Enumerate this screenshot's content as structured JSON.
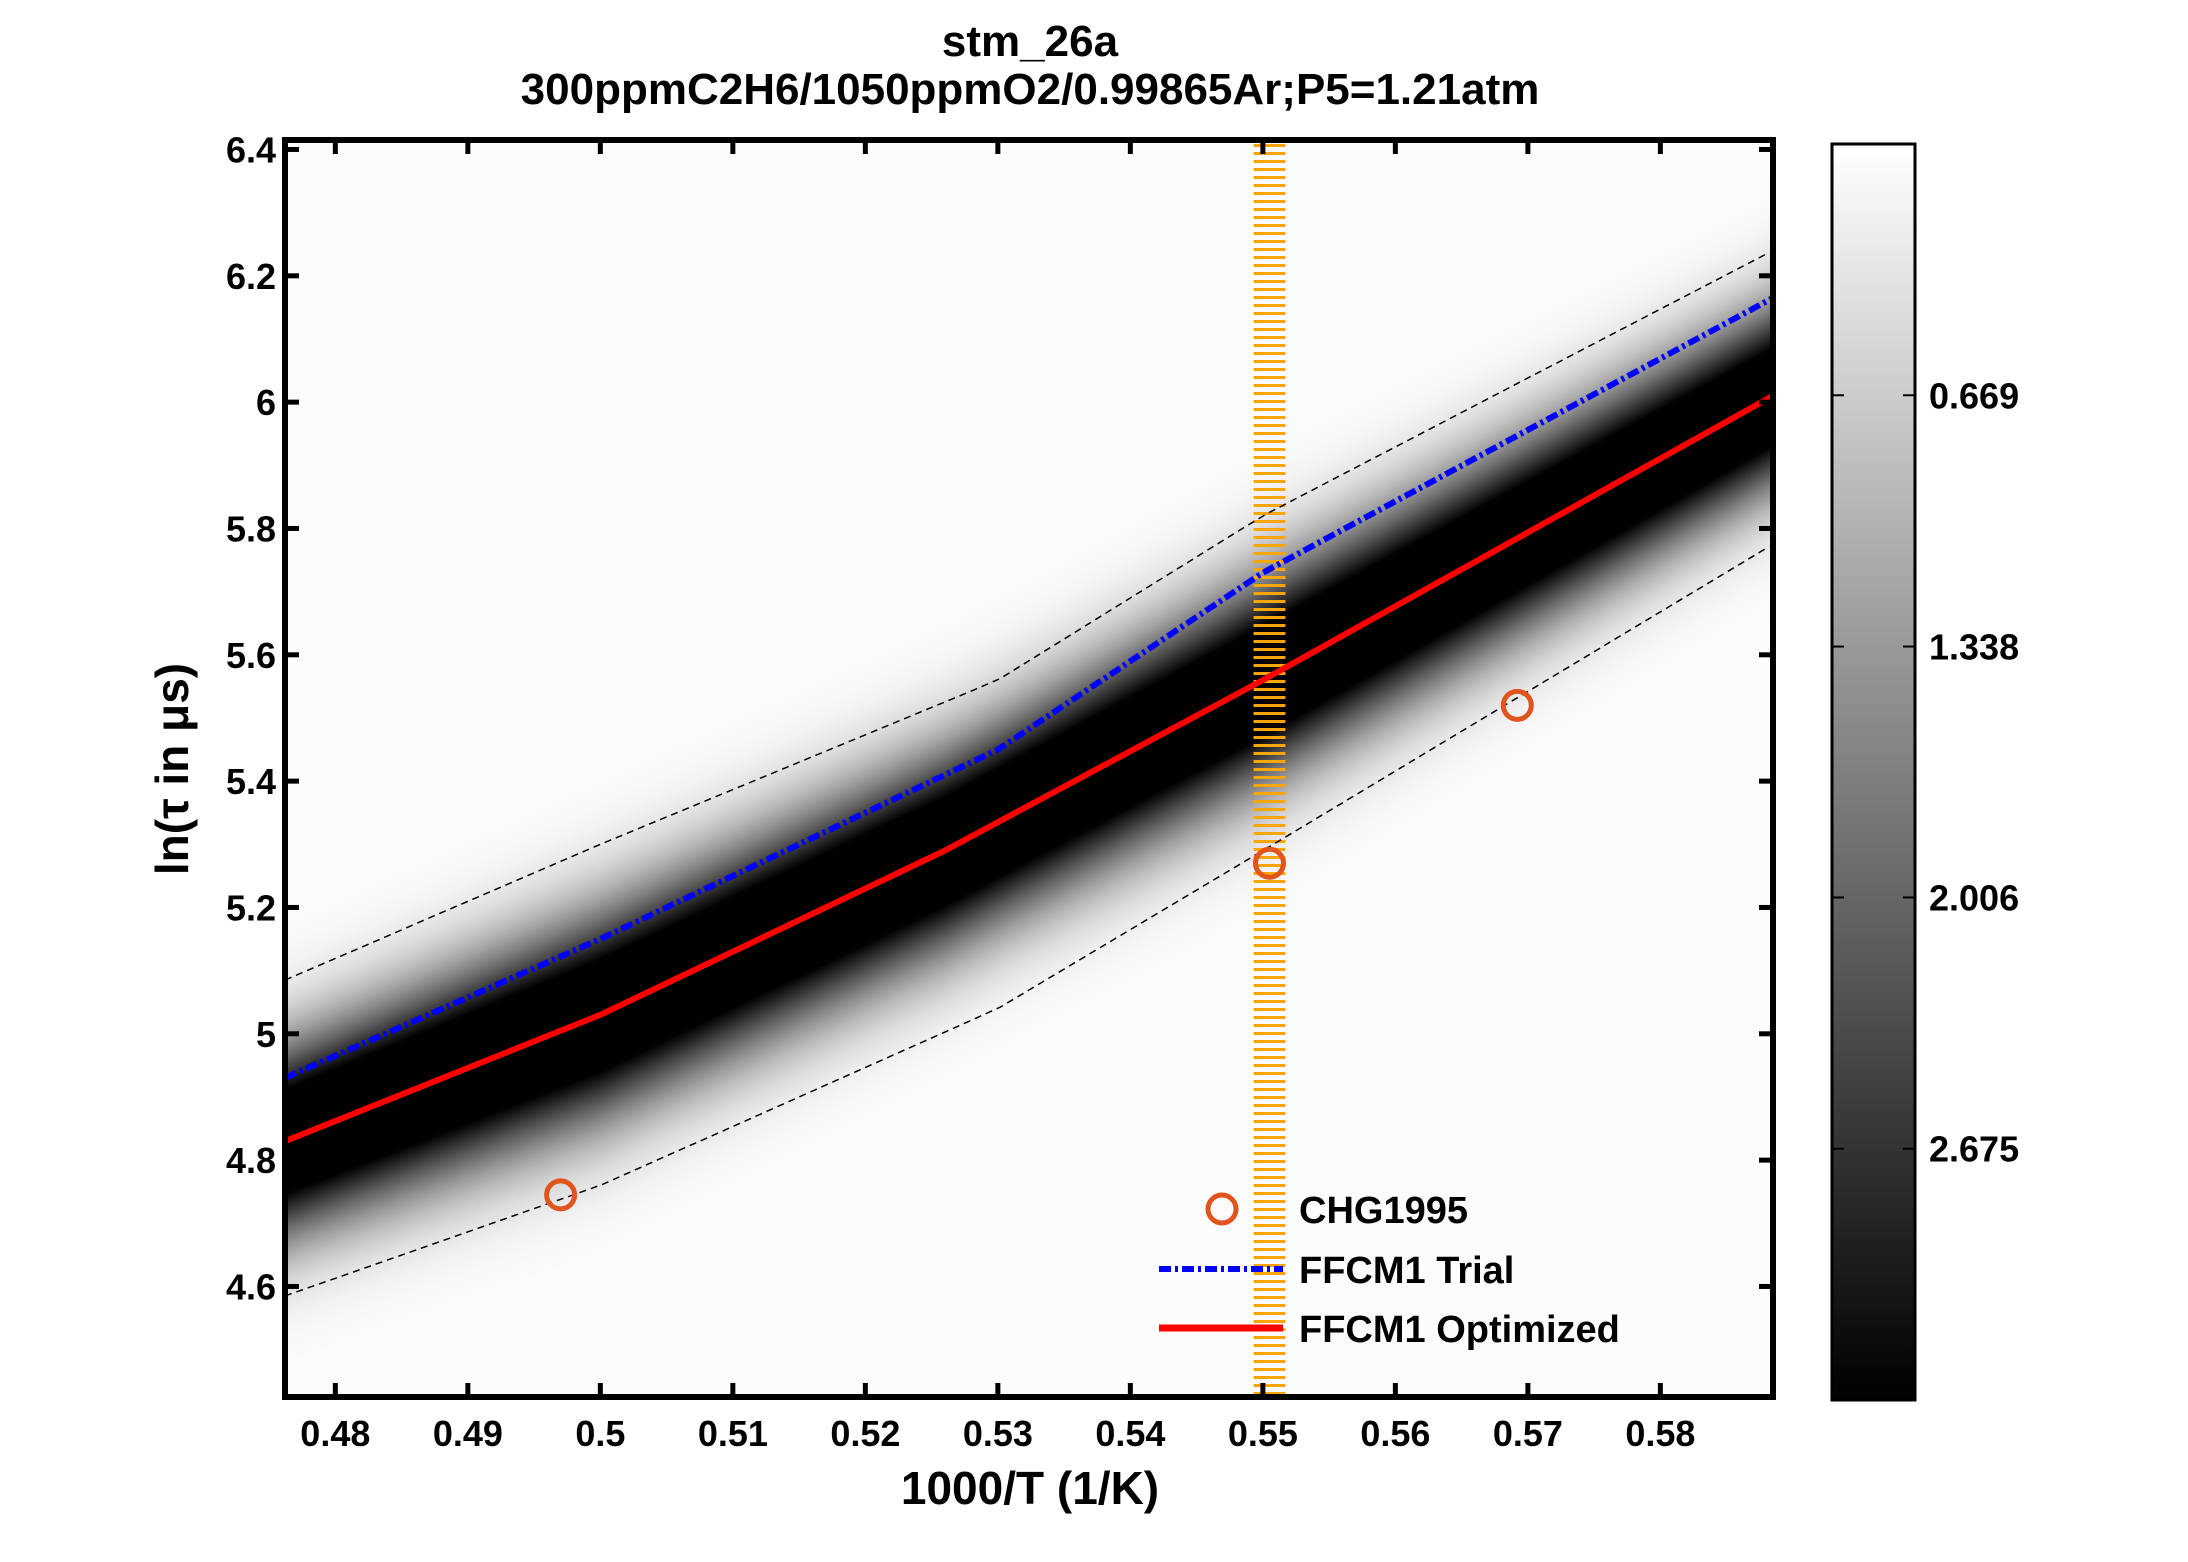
{
  "chart_data": {
    "type": "line",
    "title": "stm_26a",
    "subtitle": "300ppmC2H6/1050ppmO2/0.99865Ar;P5=1.21atm",
    "xlabel": "1000/T (1/K)",
    "ylabel": "ln(τ in μs)",
    "xlim": [
      0.4762,
      0.5885
    ],
    "ylim": [
      4.425,
      6.415
    ],
    "xticks": [
      0.48,
      0.49,
      0.5,
      0.51,
      0.52,
      0.53,
      0.54,
      0.55,
      0.56,
      0.57,
      0.58
    ],
    "xtick_labels": [
      "0.48",
      "0.49",
      "0.5",
      "0.51",
      "0.52",
      "0.53",
      "0.54",
      "0.55",
      "0.56",
      "0.57",
      "0.58"
    ],
    "yticks": [
      4.6,
      4.8,
      5.0,
      5.2,
      5.4,
      5.6,
      5.8,
      6.0,
      6.2,
      6.4
    ],
    "ytick_labels": [
      "4.6",
      "4.8",
      "5",
      "5.2",
      "5.4",
      "5.6",
      "5.8",
      "6",
      "6.2",
      "6.4"
    ],
    "grid": false,
    "legend_position": "bottom-right",
    "series": [
      {
        "name": "CHG1995",
        "style": "markers",
        "marker": "circle",
        "color": "#e0541e",
        "x": [
          0.497,
          0.5505,
          0.5692
        ],
        "y": [
          4.745,
          5.27,
          5.52
        ]
      },
      {
        "name": "FFCM1 Trial",
        "style": "dash-dot",
        "color": "#0000ff",
        "x": [
          0.4762,
          0.5,
          0.53,
          0.55,
          0.5885
        ],
        "y": [
          4.93,
          5.15,
          5.45,
          5.73,
          6.165
        ]
      },
      {
        "name": "FFCM1 Optimized",
        "style": "solid",
        "color": "#ff0000",
        "x": [
          0.4762,
          0.5,
          0.526,
          0.55,
          0.5885
        ],
        "y": [
          4.83,
          5.03,
          5.29,
          5.56,
          6.01
        ]
      }
    ],
    "uncertainty_bounds": {
      "style": "dashed",
      "color": "#000000",
      "upper": {
        "x": [
          0.4762,
          0.5,
          0.53,
          0.55,
          0.5885
        ],
        "y": [
          5.085,
          5.3,
          5.56,
          5.82,
          6.24
        ]
      },
      "lower": {
        "x": [
          0.4762,
          0.5,
          0.53,
          0.55,
          0.5885
        ],
        "y": [
          4.585,
          4.76,
          5.04,
          5.29,
          5.775
        ]
      }
    },
    "vertical_band": {
      "x_center": 0.5505,
      "half_width": 0.0012,
      "color": "#ffa500"
    },
    "heatmap": {
      "colormap": "gray-reversed",
      "clim": [
        0,
        3.344
      ]
    },
    "colorbar": {
      "ticks": [
        0.669,
        1.338,
        2.006,
        2.675
      ],
      "tick_labels": [
        "0.669",
        "1.338",
        "2.006",
        "2.675"
      ]
    }
  }
}
